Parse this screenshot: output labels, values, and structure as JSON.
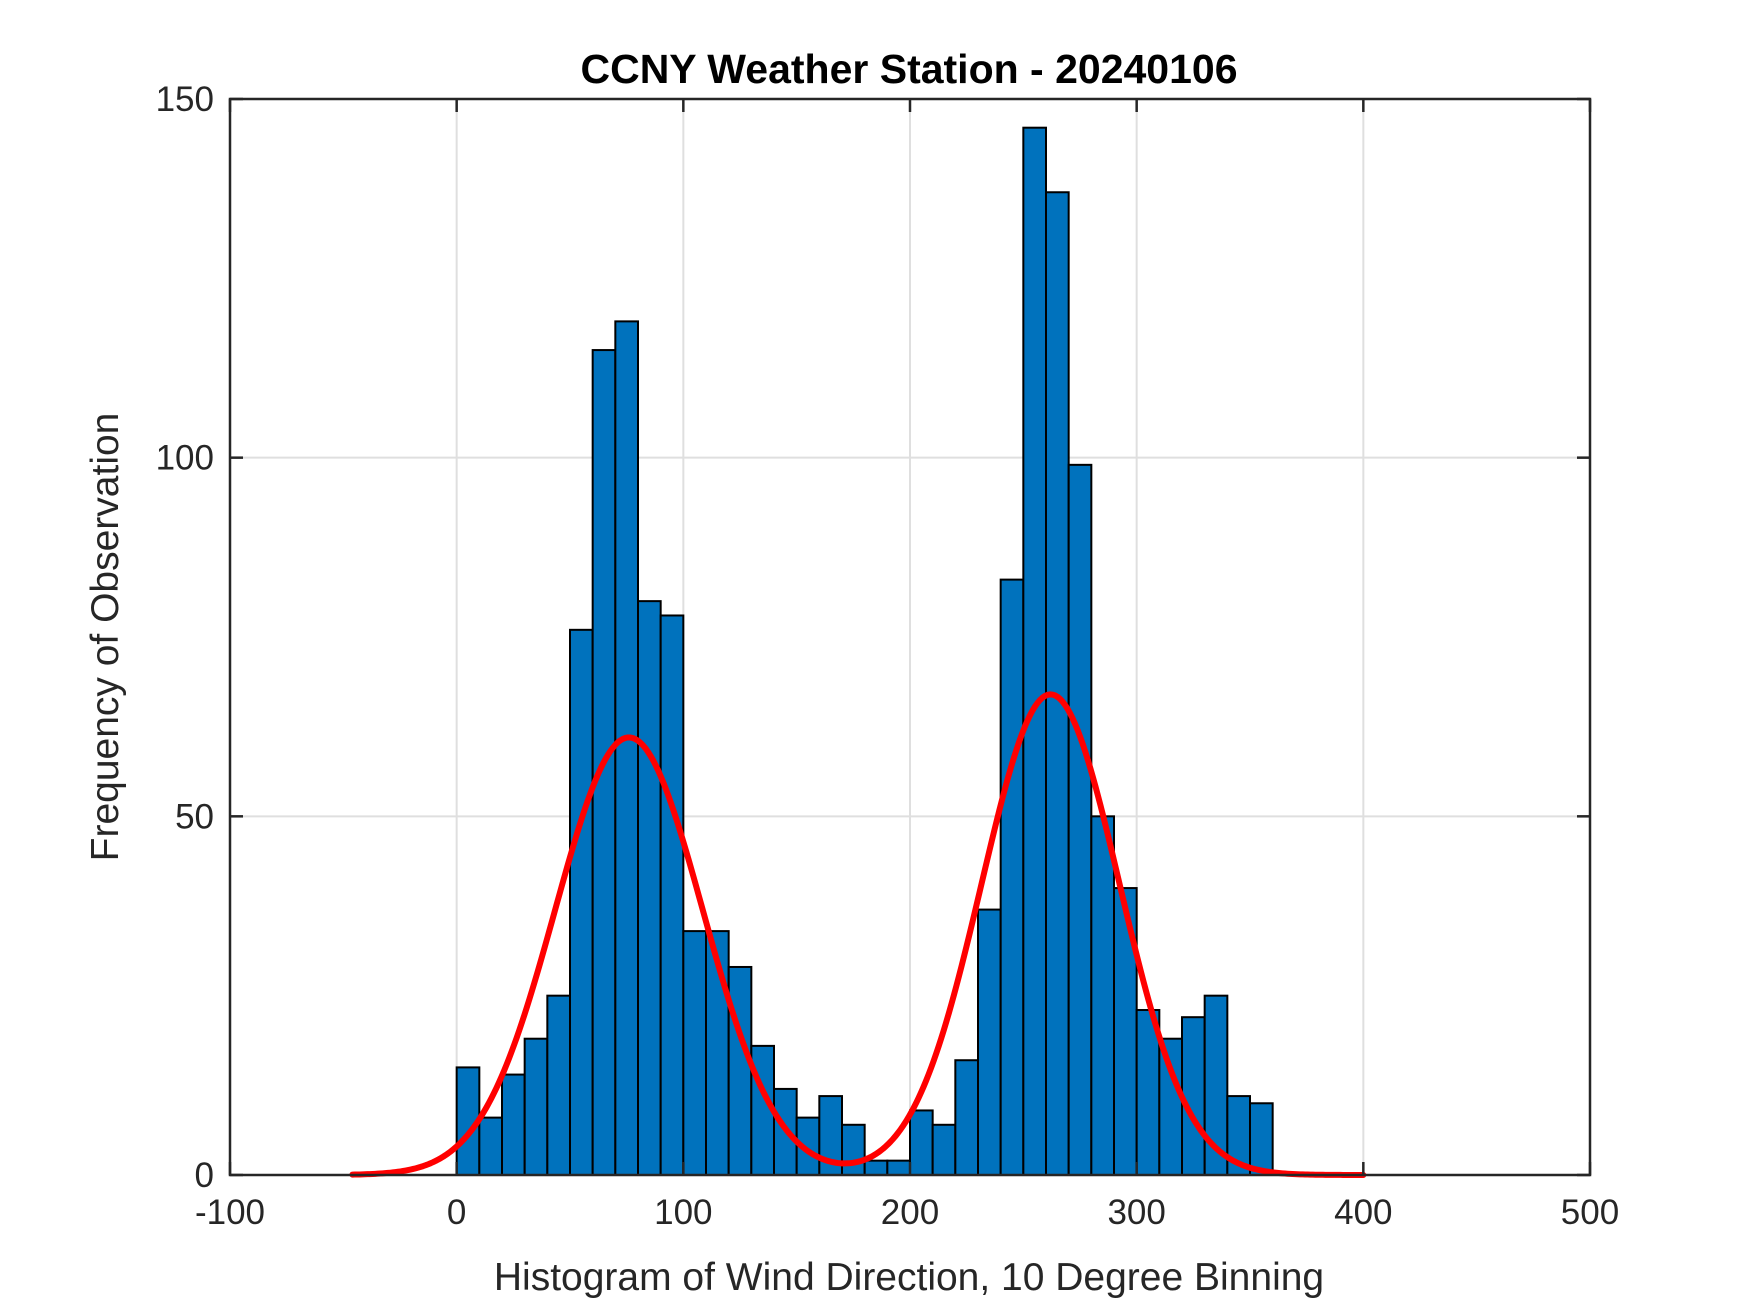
{
  "chart_data": {
    "type": "bar",
    "title": "CCNY Weather Station - 20240106",
    "xlabel": "Histogram of Wind Direction, 10 Degree Binning",
    "ylabel": "Frequency of Observation",
    "xlim": [
      -100,
      500
    ],
    "ylim": [
      0,
      150
    ],
    "xticks": [
      -100,
      0,
      100,
      200,
      300,
      400,
      500
    ],
    "yticks": [
      0,
      50,
      100,
      150
    ],
    "grid": true,
    "bin_width": 10,
    "bar_color": "#0072BD",
    "fit_color": "#FF0000",
    "bins": [
      {
        "x0": 0,
        "value": 15
      },
      {
        "x0": 10,
        "value": 8
      },
      {
        "x0": 20,
        "value": 14
      },
      {
        "x0": 30,
        "value": 19
      },
      {
        "x0": 40,
        "value": 25
      },
      {
        "x0": 50,
        "value": 76
      },
      {
        "x0": 60,
        "value": 115
      },
      {
        "x0": 70,
        "value": 119
      },
      {
        "x0": 80,
        "value": 80
      },
      {
        "x0": 90,
        "value": 78
      },
      {
        "x0": 100,
        "value": 34
      },
      {
        "x0": 110,
        "value": 34
      },
      {
        "x0": 120,
        "value": 29
      },
      {
        "x0": 130,
        "value": 18
      },
      {
        "x0": 140,
        "value": 12
      },
      {
        "x0": 150,
        "value": 8
      },
      {
        "x0": 160,
        "value": 11
      },
      {
        "x0": 170,
        "value": 7
      },
      {
        "x0": 180,
        "value": 2
      },
      {
        "x0": 190,
        "value": 2
      },
      {
        "x0": 200,
        "value": 9
      },
      {
        "x0": 210,
        "value": 7
      },
      {
        "x0": 220,
        "value": 16
      },
      {
        "x0": 230,
        "value": 37
      },
      {
        "x0": 240,
        "value": 83
      },
      {
        "x0": 250,
        "value": 146
      },
      {
        "x0": 260,
        "value": 137
      },
      {
        "x0": 270,
        "value": 99
      },
      {
        "x0": 280,
        "value": 50
      },
      {
        "x0": 290,
        "value": 40
      },
      {
        "x0": 300,
        "value": 23
      },
      {
        "x0": 310,
        "value": 19
      },
      {
        "x0": 320,
        "value": 22
      },
      {
        "x0": 330,
        "value": 25
      },
      {
        "x0": 340,
        "value": 11
      },
      {
        "x0": 350,
        "value": 10
      }
    ],
    "fit_curve": {
      "name": "Two-term Gaussian fit",
      "x_range": [
        -46,
        400
      ],
      "components": [
        {
          "amplitude": 61,
          "mean": 76,
          "sigma": 46
        },
        {
          "amplitude": 67,
          "mean": 262,
          "sigma": 43
        }
      ]
    }
  }
}
